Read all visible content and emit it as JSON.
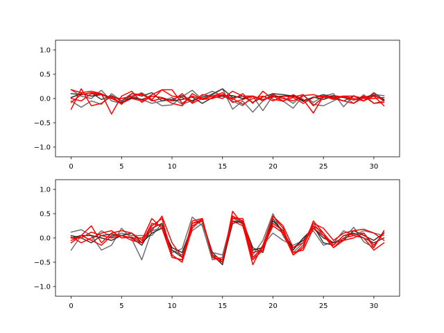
{
  "chart_data": [
    {
      "type": "line",
      "title": "",
      "xlabel": "",
      "ylabel": "",
      "xlim": [
        -1.55,
        32.55
      ],
      "ylim": [
        -1.2,
        1.2
      ],
      "xticks": [
        0,
        5,
        10,
        15,
        20,
        25,
        30
      ],
      "xtick_labels": [
        "0",
        "5",
        "10",
        "15",
        "20",
        "25",
        "30"
      ],
      "yticks": [
        1.0,
        0.5,
        0.0,
        -0.5,
        -1.0
      ],
      "ytick_labels": [
        "1.0",
        "0.5",
        "0.0",
        "−0.5",
        "−1.0"
      ],
      "grid": false,
      "legend": "none",
      "x": [
        0,
        1,
        2,
        3,
        4,
        5,
        6,
        7,
        8,
        9,
        10,
        11,
        12,
        13,
        14,
        15,
        16,
        17,
        18,
        19,
        20,
        21,
        22,
        23,
        24,
        25,
        26,
        27,
        28,
        29,
        30,
        31
      ],
      "series": [
        {
          "color": "#6e6e6e",
          "values": [
            0.18,
            0.05,
            0.0,
            0.17,
            -0.05,
            -0.1,
            0.03,
            0.12,
            -0.02,
            -0.15,
            -0.13,
            0.04,
            0.17,
            -0.02,
            0.1,
            0.2,
            -0.22,
            -0.05,
            -0.28,
            -0.05,
            0.1,
            -0.05,
            -0.2,
            0.06,
            -0.08,
            0.05,
            0.1,
            -0.17,
            0.06,
            -0.05,
            0.08,
            0.06
          ]
        },
        {
          "color": "#6e6e6e",
          "values": [
            -0.05,
            -0.18,
            -0.05,
            -0.12,
            0.1,
            -0.05,
            0.05,
            -0.02,
            -0.1,
            -0.05,
            0.02,
            -0.12,
            -0.04,
            0.06,
            0.15,
            0.05,
            -0.05,
            -0.15,
            0.05,
            -0.25,
            0.06,
            0.03,
            -0.1,
            0.08,
            -0.12,
            -0.15,
            -0.05,
            0.05,
            -0.1,
            0.08,
            -0.1,
            -0.05
          ]
        },
        {
          "color": "#3a3a3a",
          "values": [
            0.1,
            0.08,
            0.12,
            -0.02,
            0.06,
            -0.05,
            0.1,
            0.05,
            0.12,
            -0.05,
            -0.02,
            0.06,
            -0.05,
            0.03,
            0.08,
            0.2,
            0.02,
            0.05,
            -0.08,
            0.03,
            0.1,
            0.08,
            0.05,
            -0.04,
            0.02,
            0.08,
            0.02,
            -0.05,
            0.05,
            -0.05,
            0.12,
            -0.03
          ]
        },
        {
          "color": "#2a2a2a",
          "values": [
            0.02,
            0.1,
            0.05,
            0.08,
            0.0,
            -0.08,
            0.02,
            -0.02,
            0.05,
            0.02,
            -0.05,
            -0.02,
            0.03,
            -0.1,
            0.02,
            0.05,
            0.06,
            0.0,
            0.05,
            -0.02,
            0.03,
            0.05,
            0.06,
            -0.06,
            0.03,
            -0.02,
            0.05,
            0.02,
            -0.03,
            0.03,
            0.06,
            -0.02
          ]
        },
        {
          "color": "#ff0000",
          "values": [
            -0.22,
            0.2,
            -0.15,
            -0.1,
            0.05,
            -0.12,
            0.1,
            0.08,
            -0.02,
            0.18,
            0.18,
            -0.1,
            0.05,
            -0.02,
            0.0,
            0.08,
            0.0,
            -0.12,
            0.0,
            0.05,
            -0.05,
            0.05,
            0.03,
            0.08,
            -0.15,
            0.03,
            0.06,
            0.03,
            -0.03,
            0.05,
            -0.1,
            -0.08
          ]
        },
        {
          "color": "#ff0000",
          "values": [
            0.18,
            0.12,
            0.15,
            0.1,
            -0.32,
            0.05,
            0.15,
            -0.08,
            0.05,
            0.02,
            -0.1,
            -0.15,
            0.1,
            -0.02,
            0.05,
            0.12,
            -0.08,
            -0.02,
            0.05,
            -0.02,
            0.05,
            -0.06,
            0.08,
            -0.02,
            -0.3,
            0.05,
            -0.02,
            0.05,
            0.0,
            -0.05,
            0.05,
            -0.15
          ]
        },
        {
          "color": "#ff0000",
          "values": [
            -0.08,
            0.08,
            0.12,
            0.1,
            0.0,
            -0.1,
            0.0,
            -0.05,
            0.08,
            0.18,
            0.05,
            0.02,
            -0.08,
            0.08,
            0.05,
            0.0,
            0.15,
            0.05,
            0.05,
            -0.05,
            0.08,
            0.0,
            -0.05,
            0.06,
            0.08,
            0.02,
            0.02,
            0.05,
            0.05,
            0.0,
            0.0,
            0.02
          ]
        },
        {
          "color": "#ff0000",
          "values": [
            0.0,
            -0.05,
            0.1,
            0.08,
            0.02,
            0.0,
            0.05,
            0.1,
            -0.05,
            0.0,
            -0.05,
            0.1,
            -0.1,
            0.0,
            0.05,
            0.08,
            -0.02,
            0.1,
            -0.1,
            0.15,
            -0.02,
            -0.05,
            0.02,
            -0.1,
            0.02,
            0.05,
            0.0,
            -0.05,
            -0.1,
            0.02,
            0.08,
            -0.05
          ]
        }
      ]
    },
    {
      "type": "line",
      "title": "",
      "xlabel": "",
      "ylabel": "",
      "xlim": [
        -1.55,
        32.55
      ],
      "ylim": [
        -1.2,
        1.2
      ],
      "xticks": [
        0,
        5,
        10,
        15,
        20,
        25,
        30
      ],
      "xtick_labels": [
        "0",
        "5",
        "10",
        "15",
        "20",
        "25",
        "30"
      ],
      "yticks": [
        1.0,
        0.5,
        0.0,
        -0.5,
        -1.0
      ],
      "ytick_labels": [
        "1.0",
        "0.5",
        "0.0",
        "−0.5",
        "−1.0"
      ],
      "grid": false,
      "legend": "none",
      "x": [
        0,
        1,
        2,
        3,
        4,
        5,
        6,
        7,
        8,
        9,
        10,
        11,
        12,
        13,
        14,
        15,
        16,
        17,
        18,
        19,
        20,
        21,
        22,
        23,
        24,
        25,
        26,
        27,
        28,
        29,
        30,
        31
      ],
      "series": [
        {
          "color": "#6e6e6e",
          "values": [
            0.12,
            0.17,
            0.05,
            -0.25,
            -0.15,
            0.2,
            -0.02,
            -0.45,
            0.15,
            0.2,
            -0.3,
            -0.22,
            0.43,
            0.25,
            -0.45,
            -0.4,
            0.45,
            0.3,
            -0.45,
            -0.15,
            0.1,
            -0.05,
            -0.15,
            -0.05,
            0.15,
            -0.15,
            -0.08,
            -0.02,
            0.22,
            -0.08,
            -0.2,
            0.15
          ]
        },
        {
          "color": "#6e6e6e",
          "values": [
            -0.25,
            0.05,
            -0.05,
            0.15,
            0.02,
            0.1,
            0.05,
            0.05,
            0.05,
            0.3,
            -0.25,
            -0.35,
            0.15,
            0.3,
            -0.3,
            -0.35,
            0.42,
            0.28,
            -0.35,
            -0.05,
            0.5,
            0.05,
            -0.3,
            -0.1,
            0.3,
            0.05,
            -0.1,
            0.15,
            0.05,
            0.15,
            0.1,
            0.05
          ]
        },
        {
          "color": "#3a3a3a",
          "values": [
            0.05,
            0.0,
            -0.1,
            0.05,
            0.08,
            0.05,
            0.0,
            -0.15,
            0.2,
            0.3,
            -0.25,
            -0.4,
            0.3,
            0.35,
            -0.3,
            -0.5,
            0.3,
            0.35,
            -0.2,
            -0.3,
            0.4,
            0.1,
            -0.2,
            -0.05,
            0.25,
            -0.1,
            -0.15,
            0.05,
            0.1,
            0.0,
            -0.1,
            0.0
          ]
        },
        {
          "color": "#2a2a2a",
          "values": [
            0.0,
            0.05,
            0.05,
            0.0,
            -0.05,
            0.05,
            0.1,
            -0.1,
            0.1,
            0.2,
            -0.2,
            -0.3,
            0.25,
            0.35,
            -0.35,
            -0.55,
            0.35,
            0.32,
            -0.25,
            -0.2,
            0.35,
            0.15,
            -0.25,
            0.0,
            0.2,
            0.0,
            -0.1,
            -0.05,
            0.15,
            0.05,
            -0.05,
            0.1
          ]
        },
        {
          "color": "#ff0000",
          "values": [
            -0.05,
            0.05,
            0.25,
            -0.1,
            0.1,
            0.15,
            0.1,
            -0.05,
            0.4,
            0.2,
            -0.4,
            -0.45,
            0.3,
            0.38,
            -0.4,
            -0.5,
            0.55,
            0.28,
            -0.55,
            -0.15,
            0.45,
            0.2,
            -0.35,
            -0.2,
            0.35,
            0.1,
            -0.15,
            0.05,
            0.08,
            0.1,
            -0.2,
            0.15
          ]
        },
        {
          "color": "#ff0000",
          "values": [
            0.0,
            0.0,
            0.12,
            0.05,
            0.0,
            0.05,
            0.0,
            0.0,
            0.15,
            0.45,
            -0.1,
            -0.4,
            0.25,
            0.35,
            -0.35,
            -0.45,
            0.4,
            0.4,
            -0.3,
            -0.25,
            0.45,
            0.25,
            -0.2,
            -0.1,
            0.3,
            0.2,
            -0.05,
            0.1,
            0.15,
            0.18,
            0.1,
            -0.05
          ]
        },
        {
          "color": "#ff0000",
          "values": [
            0.02,
            -0.1,
            0.0,
            0.1,
            0.15,
            0.0,
            0.02,
            -0.1,
            0.25,
            0.4,
            -0.35,
            -0.5,
            0.2,
            0.4,
            -0.4,
            -0.45,
            0.35,
            0.25,
            -0.45,
            -0.25,
            0.3,
            0.15,
            -0.3,
            -0.25,
            0.2,
            0.05,
            -0.2,
            0.0,
            0.05,
            0.0,
            -0.25,
            -0.1
          ]
        },
        {
          "color": "#ff0000",
          "values": [
            -0.1,
            0.05,
            -0.05,
            -0.15,
            0.05,
            0.05,
            -0.05,
            -0.1,
            0.3,
            0.25,
            -0.4,
            -0.45,
            0.35,
            0.4,
            -0.4,
            -0.5,
            0.45,
            0.35,
            -0.4,
            -0.2,
            0.25,
            0.1,
            -0.35,
            -0.15,
            0.25,
            0.1,
            -0.2,
            -0.05,
            0.0,
            0.1,
            -0.15,
            0.1
          ]
        }
      ]
    }
  ]
}
